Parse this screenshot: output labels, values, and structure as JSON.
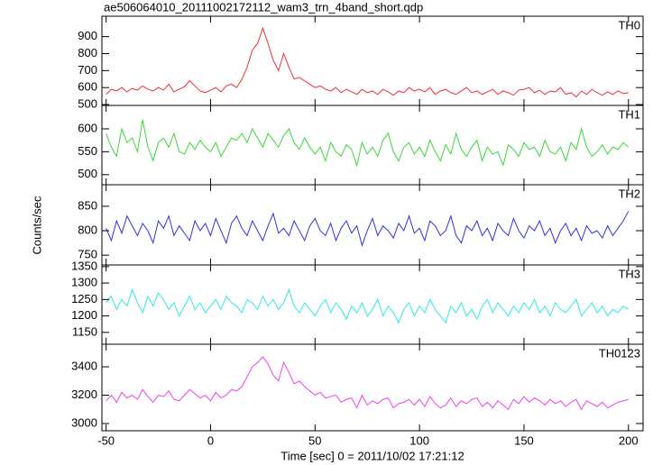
{
  "title": "ae506064010_20111002172112_wam3_trn_4band_short.qdp",
  "x_label": "Time [sec] 0 = 2011/10/02 17:21:12",
  "y_label": "Counts/sec",
  "xlim": [
    -52,
    207
  ],
  "xticks": [
    -50,
    0,
    50,
    100,
    150,
    200
  ],
  "x": [
    -50,
    -47.5,
    -45,
    -42.5,
    -40,
    -37.5,
    -35,
    -32.5,
    -30,
    -27.5,
    -25,
    -22.5,
    -20,
    -17.5,
    -15,
    -12.5,
    -10,
    -7.5,
    -5,
    -2.5,
    0,
    2.5,
    5,
    7.5,
    10,
    12.5,
    15,
    17.5,
    20,
    22.5,
    25,
    27.5,
    30,
    32.5,
    35,
    37.5,
    40,
    42.5,
    45,
    47.5,
    50,
    52.5,
    55,
    57.5,
    60,
    62.5,
    65,
    67.5,
    70,
    72.5,
    75,
    77.5,
    80,
    82.5,
    85,
    87.5,
    90,
    92.5,
    95,
    97.5,
    100,
    102.5,
    105,
    107.5,
    110,
    112.5,
    115,
    117.5,
    120,
    122.5,
    125,
    127.5,
    130,
    132.5,
    135,
    137.5,
    140,
    142.5,
    145,
    147.5,
    150,
    152.5,
    155,
    157.5,
    160,
    162.5,
    165,
    167.5,
    170,
    172.5,
    175,
    177.5,
    180,
    182.5,
    185,
    187.5,
    190,
    192.5,
    195,
    197.5,
    200
  ],
  "chart_data": [
    {
      "type": "line",
      "label": "TH0",
      "color": "#f03030",
      "ylim": [
        495,
        1020
      ],
      "yticks": [
        500,
        600,
        700,
        800,
        900
      ],
      "values": [
        560,
        590,
        580,
        600,
        575,
        595,
        585,
        610,
        590,
        580,
        600,
        585,
        620,
        575,
        590,
        605,
        640,
        610,
        580,
        570,
        585,
        600,
        575,
        610,
        620,
        600,
        650,
        720,
        820,
        860,
        950,
        860,
        760,
        700,
        800,
        720,
        650,
        660,
        640,
        620,
        600,
        610,
        590,
        580,
        600,
        570,
        590,
        575,
        560,
        590,
        570,
        580,
        560,
        590,
        575,
        555,
        580,
        570,
        600,
        580,
        590,
        575,
        600,
        560,
        580,
        590,
        570,
        560,
        580,
        600,
        570,
        580,
        560,
        575,
        590,
        560,
        580,
        570,
        555,
        585,
        590,
        600,
        570,
        585,
        560,
        580,
        575,
        600,
        560,
        570,
        545,
        580,
        560,
        590,
        570,
        555,
        575,
        560,
        580,
        565,
        570
      ]
    },
    {
      "type": "line",
      "label": "TH1",
      "color": "#3ad83a",
      "ylim": [
        478,
        651
      ],
      "yticks": [
        500,
        550,
        600
      ],
      "values": [
        590,
        560,
        540,
        600,
        570,
        580,
        550,
        620,
        560,
        530,
        570,
        580,
        560,
        590,
        550,
        545,
        570,
        555,
        575,
        560,
        550,
        570,
        540,
        560,
        580,
        575,
        590,
        570,
        600,
        580,
        560,
        590,
        575,
        560,
        585,
        600,
        570,
        555,
        580,
        560,
        545,
        560,
        530,
        570,
        550,
        540,
        565,
        555,
        520,
        570,
        545,
        560,
        540,
        575,
        590,
        550,
        530,
        560,
        570,
        545,
        560,
        540,
        575,
        550,
        530,
        565,
        545,
        590,
        555,
        540,
        560,
        575,
        530,
        560,
        545,
        550,
        520,
        565,
        555,
        540,
        570,
        555,
        560,
        540,
        575,
        550,
        545,
        560,
        530,
        570,
        555,
        600,
        560,
        540,
        550,
        565,
        545,
        560,
        555,
        570,
        560
      ]
    },
    {
      "type": "line",
      "label": "TH2",
      "color": "#3030e0",
      "ylim": [
        730,
        894
      ],
      "yticks": [
        750,
        800,
        850
      ],
      "values": [
        805,
        780,
        820,
        795,
        830,
        810,
        790,
        815,
        800,
        775,
        820,
        805,
        830,
        790,
        810,
        795,
        780,
        820,
        800,
        815,
        790,
        825,
        800,
        775,
        815,
        830,
        805,
        790,
        820,
        800,
        780,
        810,
        835,
        795,
        805,
        790,
        820,
        800,
        780,
        810,
        825,
        800,
        790,
        815,
        780,
        805,
        820,
        795,
        810,
        770,
        800,
        825,
        790,
        810,
        800,
        785,
        815,
        800,
        830,
        795,
        805,
        780,
        820,
        810,
        790,
        800,
        830,
        790,
        775,
        810,
        800,
        820,
        790,
        805,
        780,
        815,
        800,
        790,
        825,
        800,
        785,
        810,
        800,
        820,
        790,
        805,
        775,
        800,
        815,
        790,
        805,
        780,
        810,
        795,
        800,
        785,
        810,
        790,
        805,
        820,
        840
      ]
    },
    {
      "type": "line",
      "label": "TH3",
      "color": "#30e8e8",
      "ylim": [
        1114,
        1355
      ],
      "yticks": [
        1150,
        1200,
        1250,
        1300,
        1350
      ],
      "values": [
        1240,
        1260,
        1220,
        1250,
        1230,
        1280,
        1240,
        1210,
        1260,
        1230,
        1270,
        1250,
        1220,
        1240,
        1200,
        1230,
        1260,
        1220,
        1240,
        1210,
        1230,
        1250,
        1220,
        1260,
        1240,
        1230,
        1210,
        1250,
        1240,
        1220,
        1260,
        1230,
        1250,
        1220,
        1240,
        1280,
        1230,
        1210,
        1240,
        1220,
        1200,
        1230,
        1250,
        1210,
        1240,
        1220,
        1190,
        1230,
        1210,
        1240,
        1200,
        1220,
        1250,
        1200,
        1230,
        1210,
        1180,
        1220,
        1240,
        1200,
        1230,
        1210,
        1250,
        1220,
        1200,
        1180,
        1230,
        1210,
        1240,
        1200,
        1220,
        1190,
        1230,
        1250,
        1210,
        1240,
        1220,
        1200,
        1230,
        1210,
        1240,
        1220,
        1250,
        1210,
        1230,
        1200,
        1240,
        1220,
        1210,
        1230,
        1250,
        1200,
        1220,
        1240,
        1210,
        1230,
        1200,
        1220,
        1210,
        1230,
        1220
      ]
    },
    {
      "type": "line",
      "label": "TH0123",
      "color": "#ee40ee",
      "ylim": [
        2949,
        3559
      ],
      "yticks": [
        3000,
        3200,
        3400
      ],
      "values": [
        3160,
        3200,
        3150,
        3220,
        3180,
        3200,
        3170,
        3240,
        3190,
        3150,
        3200,
        3190,
        3230,
        3170,
        3160,
        3200,
        3240,
        3210,
        3180,
        3200,
        3160,
        3220,
        3180,
        3200,
        3240,
        3230,
        3260,
        3330,
        3400,
        3430,
        3470,
        3420,
        3340,
        3300,
        3430,
        3360,
        3280,
        3300,
        3260,
        3230,
        3200,
        3220,
        3180,
        3190,
        3200,
        3150,
        3170,
        3180,
        3110,
        3200,
        3130,
        3160,
        3140,
        3170,
        3180,
        3110,
        3140,
        3150,
        3170,
        3130,
        3170,
        3120,
        3190,
        3140,
        3110,
        3130,
        3180,
        3120,
        3160,
        3140,
        3170,
        3180,
        3120,
        3150,
        3110,
        3160,
        3130,
        3100,
        3170,
        3140,
        3190,
        3150,
        3180,
        3160,
        3130,
        3170,
        3140,
        3160,
        3120,
        3150,
        3170,
        3100,
        3160,
        3140,
        3120,
        3150,
        3110,
        3130,
        3150,
        3160,
        3170
      ]
    }
  ]
}
